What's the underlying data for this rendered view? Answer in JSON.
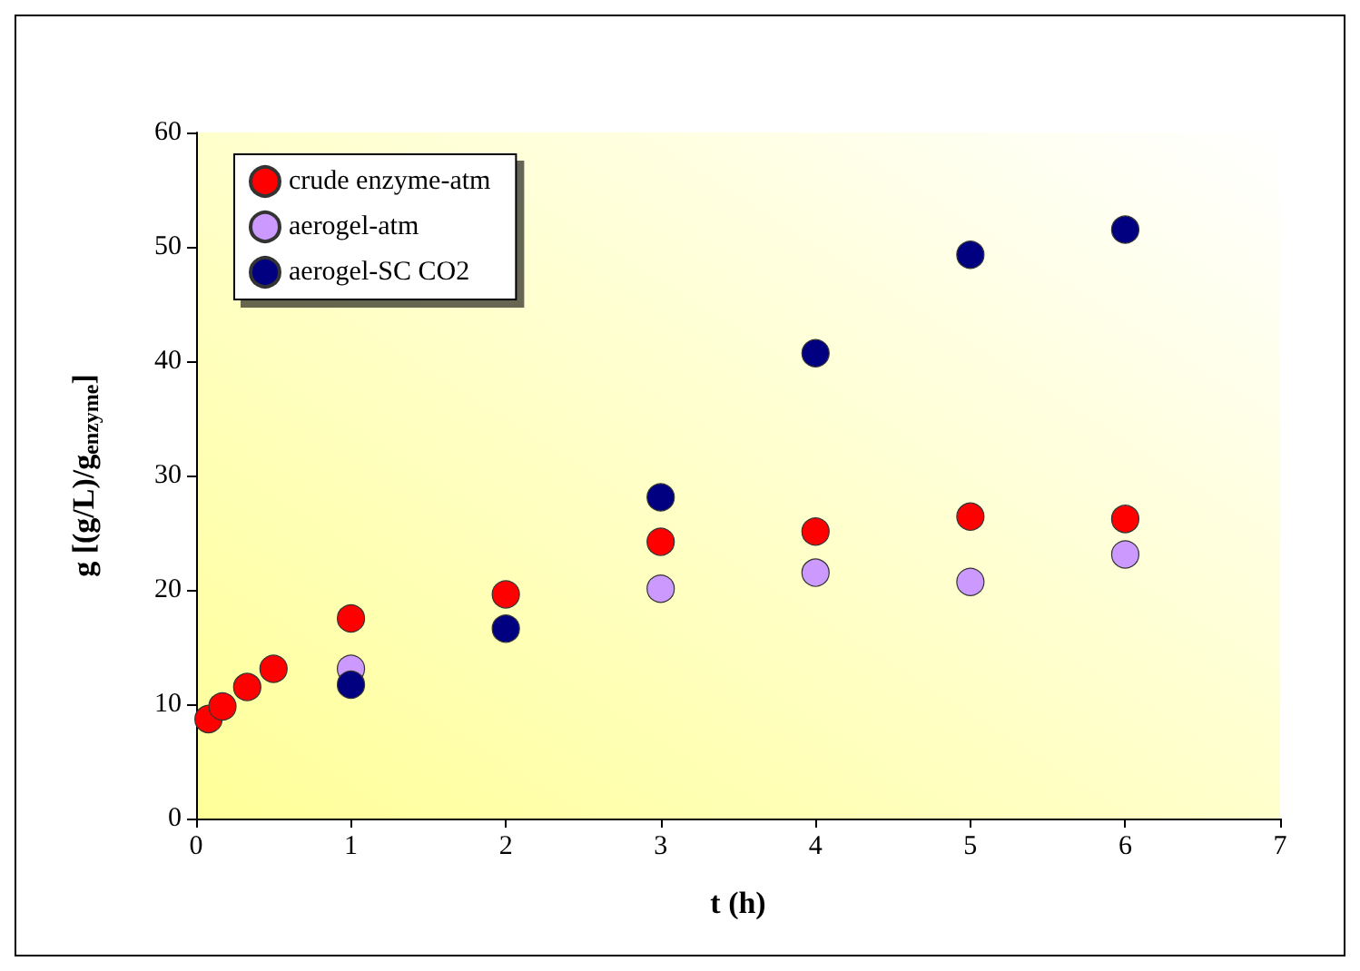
{
  "chart_data": {
    "type": "scatter",
    "xlabel": "t (h)",
    "ylabel": "g [(g/L)/g$_{enzyme}$]",
    "xlim": [
      0,
      7
    ],
    "xticks": [
      0,
      1,
      2,
      3,
      4,
      5,
      6,
      7
    ],
    "ylim": [
      0,
      60
    ],
    "yticks": [
      0,
      10,
      20,
      30,
      40,
      50,
      60
    ],
    "grid": false,
    "legend": "top left",
    "marker": "circle",
    "series": [
      {
        "name": "crude enzyme-atm",
        "color": "#ff0000",
        "x": [
          0.08,
          0.17,
          0.33,
          0.5,
          1,
          2,
          3,
          4,
          5,
          6
        ],
        "values": [
          8.7,
          9.8,
          11.5,
          13.1,
          17.5,
          19.6,
          24.2,
          25.1,
          26.4,
          26.2
        ]
      },
      {
        "name": "aerogel-atm",
        "color": "#cc99ff",
        "x": [
          1,
          3,
          4,
          5,
          6
        ],
        "values": [
          13.1,
          20.1,
          21.5,
          20.7,
          23.1
        ]
      },
      {
        "name": "aerogel-SC CO2",
        "color": "#000080",
        "x": [
          1,
          2,
          3,
          4,
          5,
          6
        ],
        "values": [
          11.7,
          16.6,
          28.1,
          40.7,
          49.3,
          51.5
        ]
      }
    ]
  }
}
